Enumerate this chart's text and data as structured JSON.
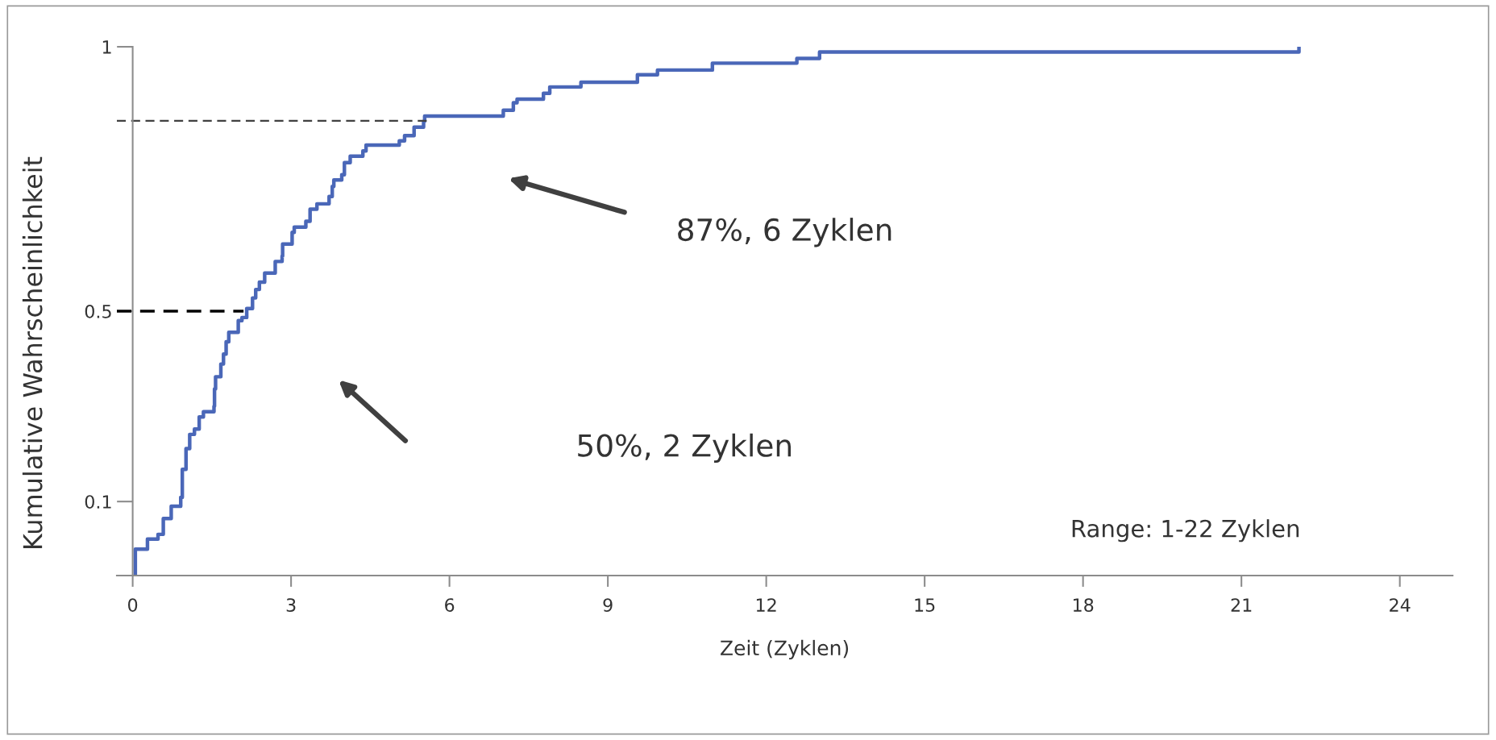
{
  "chart_data": {
    "type": "step",
    "xlabel": "Zeit (Zyklen)",
    "ylabel": "Kumulative Wahrscheinlichkeit",
    "xlim": [
      -0.3,
      25
    ],
    "xticks": [
      0,
      3,
      6,
      9,
      12,
      15,
      18,
      21,
      24
    ],
    "ylim": [
      0,
      1
    ],
    "yticks": [
      {
        "value": 0.14,
        "label": "0.1"
      },
      0.5,
      1
    ],
    "grid": false,
    "legend": false,
    "series": [
      {
        "color": "#4a67b8",
        "x": [
          0.05,
          0.05,
          0.28,
          0.48,
          0.58,
          0.73,
          0.91,
          0.94,
          1.01,
          1.08,
          1.17,
          1.26,
          1.34,
          1.54,
          1.55,
          1.57,
          1.67,
          1.72,
          1.77,
          1.82,
          2.0,
          2.07,
          2.16,
          2.27,
          2.33,
          2.4,
          2.5,
          2.7,
          2.83,
          2.84,
          3.02,
          3.06,
          3.28,
          3.36,
          3.49,
          3.72,
          3.78,
          3.81,
          3.96,
          4.01,
          4.12,
          4.36,
          4.42,
          5.05,
          5.15,
          5.33,
          5.51,
          5.53,
          7.02,
          7.21,
          7.28,
          7.78,
          7.9,
          8.49,
          9.56,
          9.94,
          10.98,
          12.58,
          13.01,
          22.09,
          22.09
        ],
        "values": [
          0,
          0.05,
          0.069,
          0.078,
          0.108,
          0.131,
          0.148,
          0.201,
          0.24,
          0.267,
          0.277,
          0.3,
          0.31,
          0.32,
          0.353,
          0.376,
          0.4,
          0.419,
          0.442,
          0.46,
          0.482,
          0.488,
          0.505,
          0.525,
          0.541,
          0.555,
          0.572,
          0.594,
          0.604,
          0.627,
          0.649,
          0.659,
          0.67,
          0.693,
          0.703,
          0.717,
          0.736,
          0.748,
          0.758,
          0.781,
          0.793,
          0.803,
          0.814,
          0.822,
          0.832,
          0.848,
          0.859,
          0.869,
          0.88,
          0.894,
          0.901,
          0.912,
          0.924,
          0.933,
          0.947,
          0.956,
          0.969,
          0.978,
          0.99,
          0.99,
          1.0
        ]
      },
      {
        "type": "line",
        "color": "#404040",
        "line_style": "dashed",
        "x": [
          -0.3,
          5.6
        ],
        "values": [
          0.86,
          0.86
        ]
      },
      {
        "type": "line",
        "color": "#000000",
        "line_style": "dashed",
        "x": [
          -0.3,
          2.1
        ],
        "values": [
          0.5,
          0.5
        ]
      }
    ],
    "annotations": [
      "87%, 6 Zyklen",
      "50%, 2 Zyklen",
      "Range: 1-22 Zyklen"
    ]
  }
}
